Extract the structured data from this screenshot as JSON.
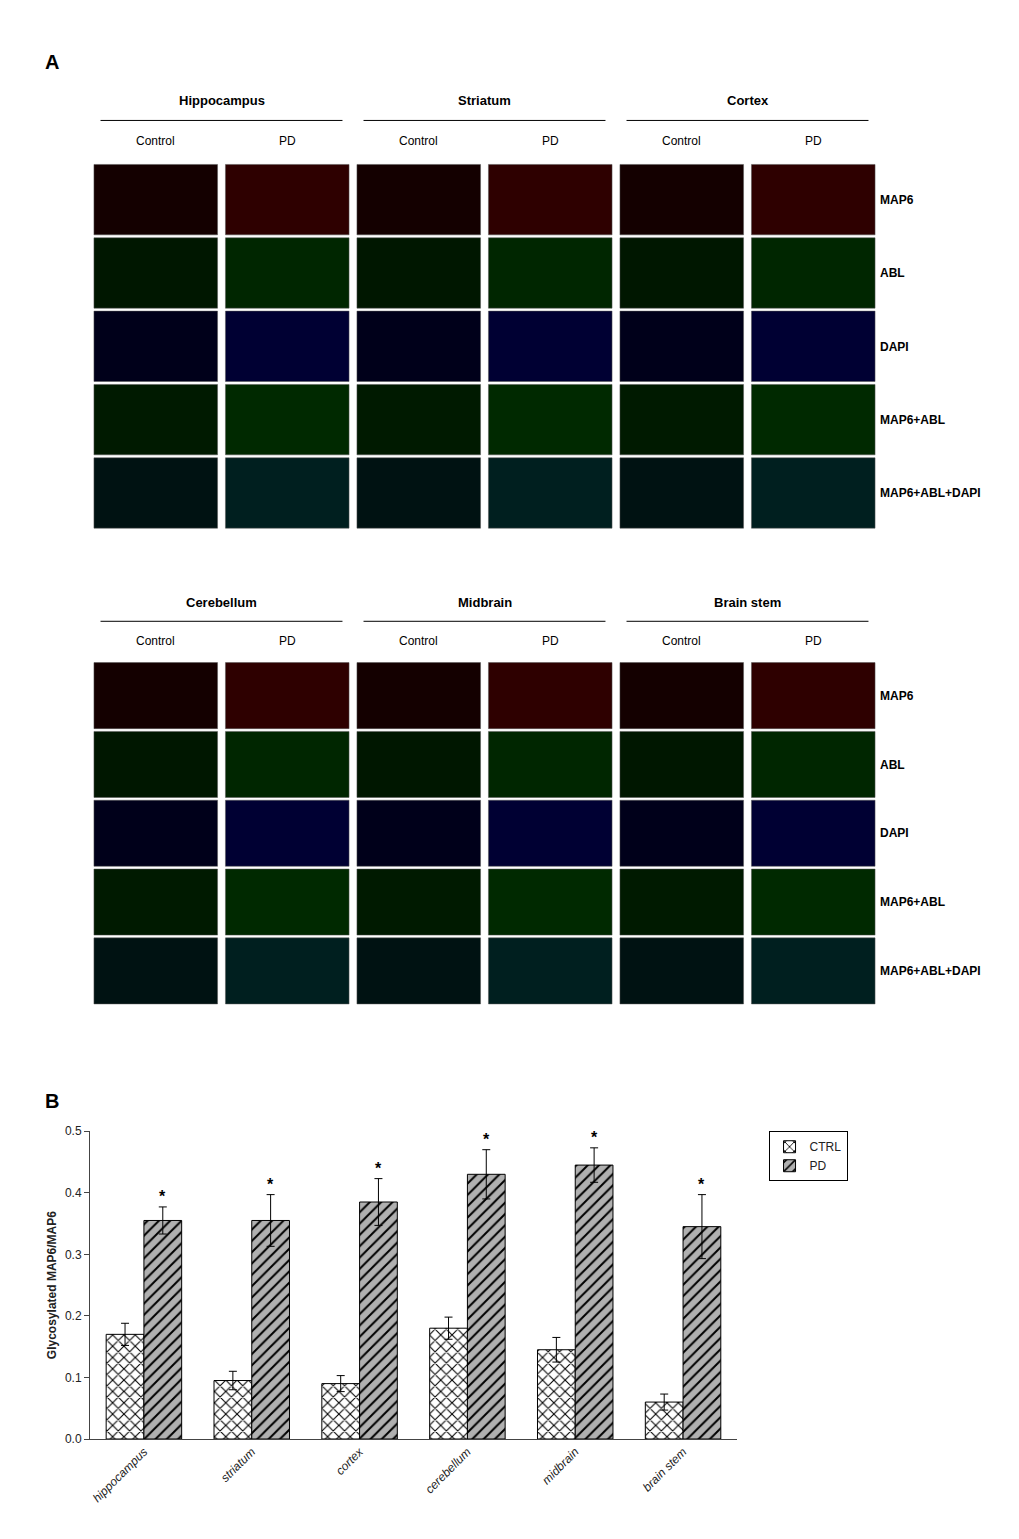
{
  "chart_data": [
    {
      "type": "tiles",
      "title": "A",
      "groups": [
        "Hippocampus",
        "Striatum",
        "Cortex"
      ],
      "categories": [
        "MAP6",
        "ABL",
        "DAPI",
        "MAP6+ABL",
        "MAP6+ABL+DAPI"
      ],
      "series": [
        {
          "name": "Control",
          "colors": [
            "#140000",
            "#001700",
            "#00001a",
            "#001a00",
            "#001212"
          ]
        },
        {
          "name": "PD",
          "colors": [
            "#2e0000",
            "#002600",
            "#000033",
            "#002900",
            "#001f1f"
          ]
        }
      ]
    },
    {
      "type": "tiles",
      "groups": [
        "Cerebellum",
        "Midbrain",
        "Brain stem"
      ],
      "categories": [
        "MAP6",
        "ABL",
        "DAPI",
        "MAP6+ABL",
        "MAP6+ABL+DAPI"
      ],
      "series": [
        {
          "name": "Control",
          "colors": [
            "#140000",
            "#001700",
            "#00001a",
            "#001a00",
            "#001212"
          ]
        },
        {
          "name": "PD",
          "colors": [
            "#2e0000",
            "#002600",
            "#000033",
            "#002900",
            "#001f1f"
          ]
        }
      ]
    },
    {
      "type": "bar",
      "title": "B",
      "categories": [
        "hippocampus",
        "striatum",
        "cortex",
        "cerebellum",
        "midbrain",
        "brain stem"
      ],
      "series": [
        {
          "name": "CTRL",
          "color": "#ffffff",
          "marker": "xx",
          "values": [
            0.17,
            0.095,
            0.09,
            0.18,
            0.145,
            0.06
          ],
          "errors": [
            0.018,
            0.015,
            0.013,
            0.018,
            0.02,
            0.013
          ]
        },
        {
          "name": "PD",
          "color": "#b0b0b0",
          "marker": "//",
          "values": [
            0.355,
            0.355,
            0.385,
            0.43,
            0.445,
            0.345
          ],
          "errors": [
            0.022,
            0.042,
            0.038,
            0.04,
            0.028,
            0.052
          ]
        }
      ],
      "ylabel": "Glycosylated MAP6/MAP6",
      "ylim": [
        0.0,
        0.5
      ],
      "yticks": [
        {
          "value": 0.0,
          "label": "0.0"
        },
        0.1,
        0.2,
        0.3,
        0.4,
        0.5
      ],
      "legend": "upper right",
      "grid": false,
      "annotations": [
        {
          "category": "hippocampus",
          "series": "PD",
          "text": "*"
        },
        {
          "category": "striatum",
          "series": "PD",
          "text": "*"
        },
        {
          "category": "cortex",
          "series": "PD",
          "text": "*"
        },
        {
          "category": "cerebellum",
          "series": "PD",
          "text": "*"
        },
        {
          "category": "midbrain",
          "series": "PD",
          "text": "*"
        },
        {
          "category": "brain stem",
          "series": "PD",
          "text": "*"
        }
      ]
    }
  ]
}
